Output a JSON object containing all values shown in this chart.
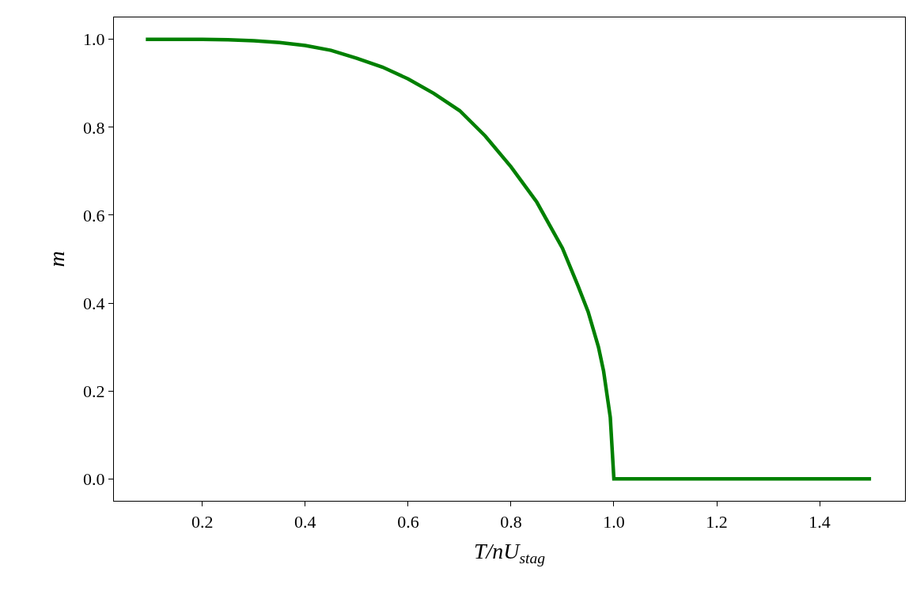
{
  "chart_data": {
    "type": "line",
    "xlabel": "T/nU$_{stag}$",
    "ylabel": "m",
    "x": [
      0.09,
      0.2,
      0.25,
      0.3,
      0.35,
      0.4,
      0.45,
      0.5,
      0.55,
      0.6,
      0.65,
      0.7,
      0.75,
      0.8,
      0.85,
      0.9,
      0.93,
      0.95,
      0.97,
      0.98,
      0.993,
      1.0,
      1.5
    ],
    "series": [
      {
        "color": "#008000",
        "values": [
          1.0,
          1.0,
          0.999,
          0.997,
          0.993,
          0.986,
          0.975,
          0.957,
          0.937,
          0.91,
          0.877,
          0.838,
          0.78,
          0.71,
          0.63,
          0.525,
          0.44,
          0.38,
          0.3,
          0.245,
          0.14,
          0.0,
          0.0
        ]
      }
    ],
    "xlim": [
      0.028,
      1.566
    ],
    "ylim": [
      -0.05,
      1.05
    ],
    "xticks": [
      0.2,
      0.4,
      0.6,
      0.8,
      {
        "value": 1,
        "label": "1.0"
      },
      1.2,
      1.4
    ],
    "yticks": [
      {
        "value": 0,
        "label": "0.0"
      },
      0.2,
      0.4,
      0.6,
      0.8,
      {
        "value": 1,
        "label": "1.0"
      }
    ],
    "marker": "none",
    "line_style": "solid"
  }
}
